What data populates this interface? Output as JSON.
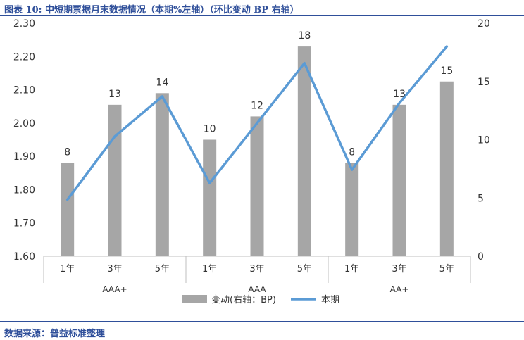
{
  "header": {
    "title": "图表 10:  中短期票据月末数据情况（本期%左轴）（环比变动 BP 右轴）"
  },
  "footer": {
    "source": "数据来源：普益标准整理"
  },
  "chart_data": {
    "type": "bar",
    "groups": [
      {
        "name": "AAA+",
        "categories": [
          "1年",
          "3年",
          "5年"
        ]
      },
      {
        "name": "AAA",
        "categories": [
          "1年",
          "3年",
          "5年"
        ]
      },
      {
        "name": "AA+",
        "categories": [
          "1年",
          "3年",
          "5年"
        ]
      }
    ],
    "series": [
      {
        "name": "变动(右轴：BP)",
        "type": "bar",
        "axis": "right",
        "color": "#a6a6a6",
        "values": [
          8,
          13,
          14,
          10,
          12,
          18,
          8,
          13,
          15
        ],
        "data_labels": [
          "8",
          "13",
          "14",
          "10",
          "12",
          "18",
          "8",
          "13",
          "15"
        ]
      },
      {
        "name": "本期",
        "type": "line",
        "axis": "left",
        "color": "#5b9bd5",
        "values": [
          1.77,
          1.96,
          2.08,
          1.82,
          2.0,
          2.18,
          1.86,
          2.06,
          2.23
        ]
      }
    ],
    "left_axis": {
      "ylim": [
        1.6,
        2.3
      ],
      "ticks": [
        "1.60",
        "1.70",
        "1.80",
        "1.90",
        "2.00",
        "2.10",
        "2.20",
        "2.30"
      ]
    },
    "right_axis": {
      "ylim": [
        0,
        20
      ],
      "ticks": [
        "0",
        "5",
        "10",
        "15",
        "20"
      ]
    },
    "grid": false,
    "legend": "bottom-center"
  }
}
